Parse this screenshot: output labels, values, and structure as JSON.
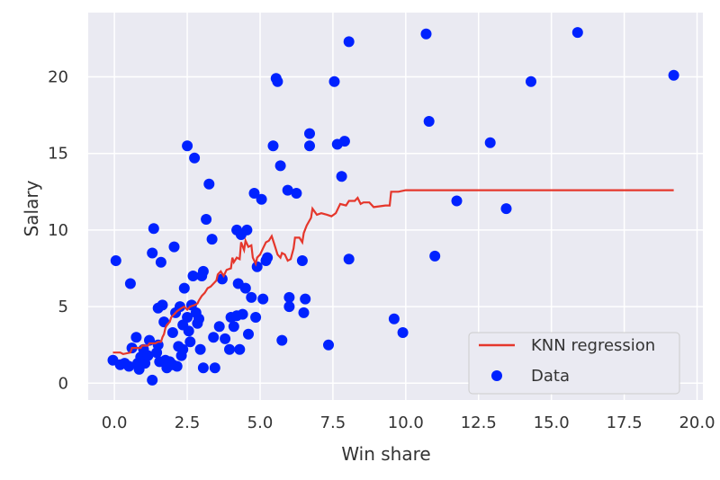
{
  "chart_data": {
    "type": "scatter",
    "xlabel": "Win share",
    "ylabel": "Salary",
    "xlim": [
      -0.9,
      20.2
    ],
    "ylim": [
      -1.1,
      24.2
    ],
    "xticks": [
      0.0,
      2.5,
      5.0,
      7.5,
      10.0,
      12.5,
      15.0,
      17.5,
      20.0
    ],
    "xtick_labels": [
      "0.0",
      "2.5",
      "5.0",
      "7.5",
      "10.0",
      "12.5",
      "15.0",
      "17.5",
      "20.0"
    ],
    "yticks": [
      0,
      5,
      10,
      15,
      20
    ],
    "ytick_labels": [
      "0",
      "5",
      "10",
      "15",
      "20"
    ],
    "grid": true,
    "legend_position": "lower-right",
    "series": [
      {
        "name": "KNN regression",
        "kind": "line",
        "color": "#e5372c",
        "points": [
          [
            -0.05,
            2.0
          ],
          [
            0.2,
            2.0
          ],
          [
            0.3,
            1.9
          ],
          [
            0.55,
            2.0
          ],
          [
            0.6,
            2.3
          ],
          [
            0.9,
            2.3
          ],
          [
            0.95,
            2.45
          ],
          [
            1.15,
            2.45
          ],
          [
            1.2,
            2.6
          ],
          [
            1.4,
            2.6
          ],
          [
            1.5,
            2.7
          ],
          [
            1.6,
            2.7
          ],
          [
            1.65,
            3.0
          ],
          [
            1.7,
            3.2
          ],
          [
            1.75,
            3.6
          ],
          [
            1.8,
            3.8
          ],
          [
            1.9,
            4.0
          ],
          [
            1.95,
            4.3
          ],
          [
            2.05,
            4.5
          ],
          [
            2.15,
            4.7
          ],
          [
            2.3,
            4.9
          ],
          [
            2.4,
            5.0
          ],
          [
            2.5,
            4.8
          ],
          [
            2.6,
            5.0
          ],
          [
            2.75,
            5.1
          ],
          [
            2.85,
            5.2
          ],
          [
            2.9,
            5.4
          ],
          [
            3.0,
            5.7
          ],
          [
            3.1,
            5.9
          ],
          [
            3.2,
            6.2
          ],
          [
            3.3,
            6.3
          ],
          [
            3.4,
            6.5
          ],
          [
            3.5,
            6.7
          ],
          [
            3.55,
            7.1
          ],
          [
            3.65,
            7.3
          ],
          [
            3.75,
            7.0
          ],
          [
            3.85,
            7.4
          ],
          [
            4.0,
            7.5
          ],
          [
            4.05,
            8.2
          ],
          [
            4.1,
            7.9
          ],
          [
            4.2,
            8.2
          ],
          [
            4.3,
            8.1
          ],
          [
            4.35,
            9.2
          ],
          [
            4.45,
            8.7
          ],
          [
            4.5,
            9.3
          ],
          [
            4.6,
            8.9
          ],
          [
            4.7,
            9.0
          ],
          [
            4.75,
            8.2
          ],
          [
            4.85,
            7.8
          ],
          [
            4.9,
            8.2
          ],
          [
            5.0,
            8.4
          ],
          [
            5.1,
            8.8
          ],
          [
            5.2,
            9.2
          ],
          [
            5.3,
            9.3
          ],
          [
            5.4,
            9.6
          ],
          [
            5.5,
            9.0
          ],
          [
            5.6,
            8.4
          ],
          [
            5.7,
            8.2
          ],
          [
            5.75,
            8.5
          ],
          [
            5.85,
            8.4
          ],
          [
            5.95,
            8.0
          ],
          [
            6.05,
            8.1
          ],
          [
            6.15,
            8.8
          ],
          [
            6.2,
            9.5
          ],
          [
            6.35,
            9.5
          ],
          [
            6.45,
            9.2
          ],
          [
            6.5,
            9.8
          ],
          [
            6.6,
            10.3
          ],
          [
            6.75,
            10.8
          ],
          [
            6.8,
            11.4
          ],
          [
            6.95,
            11.0
          ],
          [
            7.1,
            11.1
          ],
          [
            7.3,
            11.0
          ],
          [
            7.45,
            10.9
          ],
          [
            7.6,
            11.1
          ],
          [
            7.75,
            11.7
          ],
          [
            7.95,
            11.6
          ],
          [
            8.05,
            11.9
          ],
          [
            8.25,
            11.9
          ],
          [
            8.35,
            12.1
          ],
          [
            8.45,
            11.7
          ],
          [
            8.55,
            11.8
          ],
          [
            8.75,
            11.8
          ],
          [
            8.9,
            11.5
          ],
          [
            9.3,
            11.6
          ],
          [
            9.45,
            11.6
          ],
          [
            9.5,
            12.5
          ],
          [
            9.75,
            12.5
          ],
          [
            10.0,
            12.6
          ],
          [
            11.0,
            12.6
          ],
          [
            13.0,
            12.6
          ],
          [
            15.0,
            12.6
          ],
          [
            17.0,
            12.6
          ],
          [
            19.2,
            12.6
          ]
        ]
      },
      {
        "name": "Data",
        "kind": "scatter",
        "color": "#0022ff",
        "points": [
          [
            0.05,
            8.0
          ],
          [
            -0.05,
            1.5
          ],
          [
            0.2,
            1.2
          ],
          [
            0.35,
            1.3
          ],
          [
            0.5,
            1.1
          ],
          [
            0.55,
            6.5
          ],
          [
            0.6,
            2.3
          ],
          [
            0.75,
            3.0
          ],
          [
            0.8,
            1.3
          ],
          [
            0.85,
            0.9
          ],
          [
            0.9,
            1.7
          ],
          [
            1.0,
            2.2
          ],
          [
            1.05,
            1.3
          ],
          [
            1.15,
            1.8
          ],
          [
            1.2,
            2.8
          ],
          [
            1.3,
            8.5
          ],
          [
            1.35,
            10.1
          ],
          [
            1.3,
            0.2
          ],
          [
            1.45,
            2.0
          ],
          [
            1.5,
            2.5
          ],
          [
            1.5,
            4.9
          ],
          [
            1.55,
            1.4
          ],
          [
            1.6,
            7.9
          ],
          [
            1.65,
            5.1
          ],
          [
            1.7,
            4.0
          ],
          [
            1.75,
            1.5
          ],
          [
            1.8,
            1.0
          ],
          [
            1.85,
            1.2
          ],
          [
            1.9,
            1.4
          ],
          [
            2.0,
            1.2
          ],
          [
            2.0,
            3.3
          ],
          [
            2.05,
            8.9
          ],
          [
            2.1,
            4.6
          ],
          [
            2.15,
            1.1
          ],
          [
            2.2,
            2.4
          ],
          [
            2.25,
            5.0
          ],
          [
            2.3,
            1.8
          ],
          [
            2.35,
            2.2
          ],
          [
            2.35,
            3.8
          ],
          [
            2.4,
            6.2
          ],
          [
            2.5,
            15.5
          ],
          [
            2.5,
            4.3
          ],
          [
            2.55,
            3.4
          ],
          [
            2.6,
            2.7
          ],
          [
            2.65,
            5.1
          ],
          [
            2.7,
            7.0
          ],
          [
            2.75,
            14.7
          ],
          [
            2.8,
            4.6
          ],
          [
            2.85,
            3.9
          ],
          [
            2.9,
            4.2
          ],
          [
            2.95,
            2.2
          ],
          [
            3.0,
            7.0
          ],
          [
            3.05,
            1.0
          ],
          [
            3.05,
            7.3
          ],
          [
            3.15,
            10.7
          ],
          [
            3.25,
            13.0
          ],
          [
            3.35,
            9.4
          ],
          [
            3.4,
            3.0
          ],
          [
            3.45,
            1.0
          ],
          [
            3.6,
            3.7
          ],
          [
            3.7,
            6.8
          ],
          [
            3.8,
            2.9
          ],
          [
            3.95,
            2.2
          ],
          [
            4.0,
            4.3
          ],
          [
            4.1,
            3.7
          ],
          [
            4.2,
            4.4
          ],
          [
            4.25,
            6.5
          ],
          [
            4.2,
            10.0
          ],
          [
            4.3,
            2.2
          ],
          [
            4.35,
            9.7
          ],
          [
            4.4,
            4.5
          ],
          [
            4.5,
            6.2
          ],
          [
            4.55,
            10.0
          ],
          [
            4.6,
            3.2
          ],
          [
            4.7,
            5.6
          ],
          [
            4.8,
            12.4
          ],
          [
            4.85,
            4.3
          ],
          [
            4.9,
            7.6
          ],
          [
            5.05,
            12.0
          ],
          [
            5.1,
            5.5
          ],
          [
            5.2,
            8.0
          ],
          [
            5.25,
            8.2
          ],
          [
            5.45,
            15.5
          ],
          [
            5.55,
            19.9
          ],
          [
            5.6,
            19.7
          ],
          [
            5.7,
            14.2
          ],
          [
            5.75,
            2.8
          ],
          [
            5.95,
            12.6
          ],
          [
            6.0,
            5.6
          ],
          [
            6.0,
            5.0
          ],
          [
            6.25,
            12.4
          ],
          [
            6.45,
            8.0
          ],
          [
            6.5,
            4.6
          ],
          [
            6.55,
            5.5
          ],
          [
            6.7,
            16.3
          ],
          [
            6.7,
            15.5
          ],
          [
            7.35,
            2.5
          ],
          [
            7.55,
            19.7
          ],
          [
            7.65,
            15.6
          ],
          [
            7.8,
            13.5
          ],
          [
            7.9,
            15.8
          ],
          [
            8.05,
            22.3
          ],
          [
            8.05,
            8.1
          ],
          [
            9.6,
            4.2
          ],
          [
            9.9,
            3.3
          ],
          [
            10.7,
            22.8
          ],
          [
            10.8,
            17.1
          ],
          [
            11.0,
            8.3
          ],
          [
            11.75,
            11.9
          ],
          [
            12.9,
            15.7
          ],
          [
            13.45,
            11.4
          ],
          [
            14.3,
            19.7
          ],
          [
            15.9,
            22.9
          ],
          [
            19.2,
            20.1
          ]
        ]
      }
    ]
  }
}
